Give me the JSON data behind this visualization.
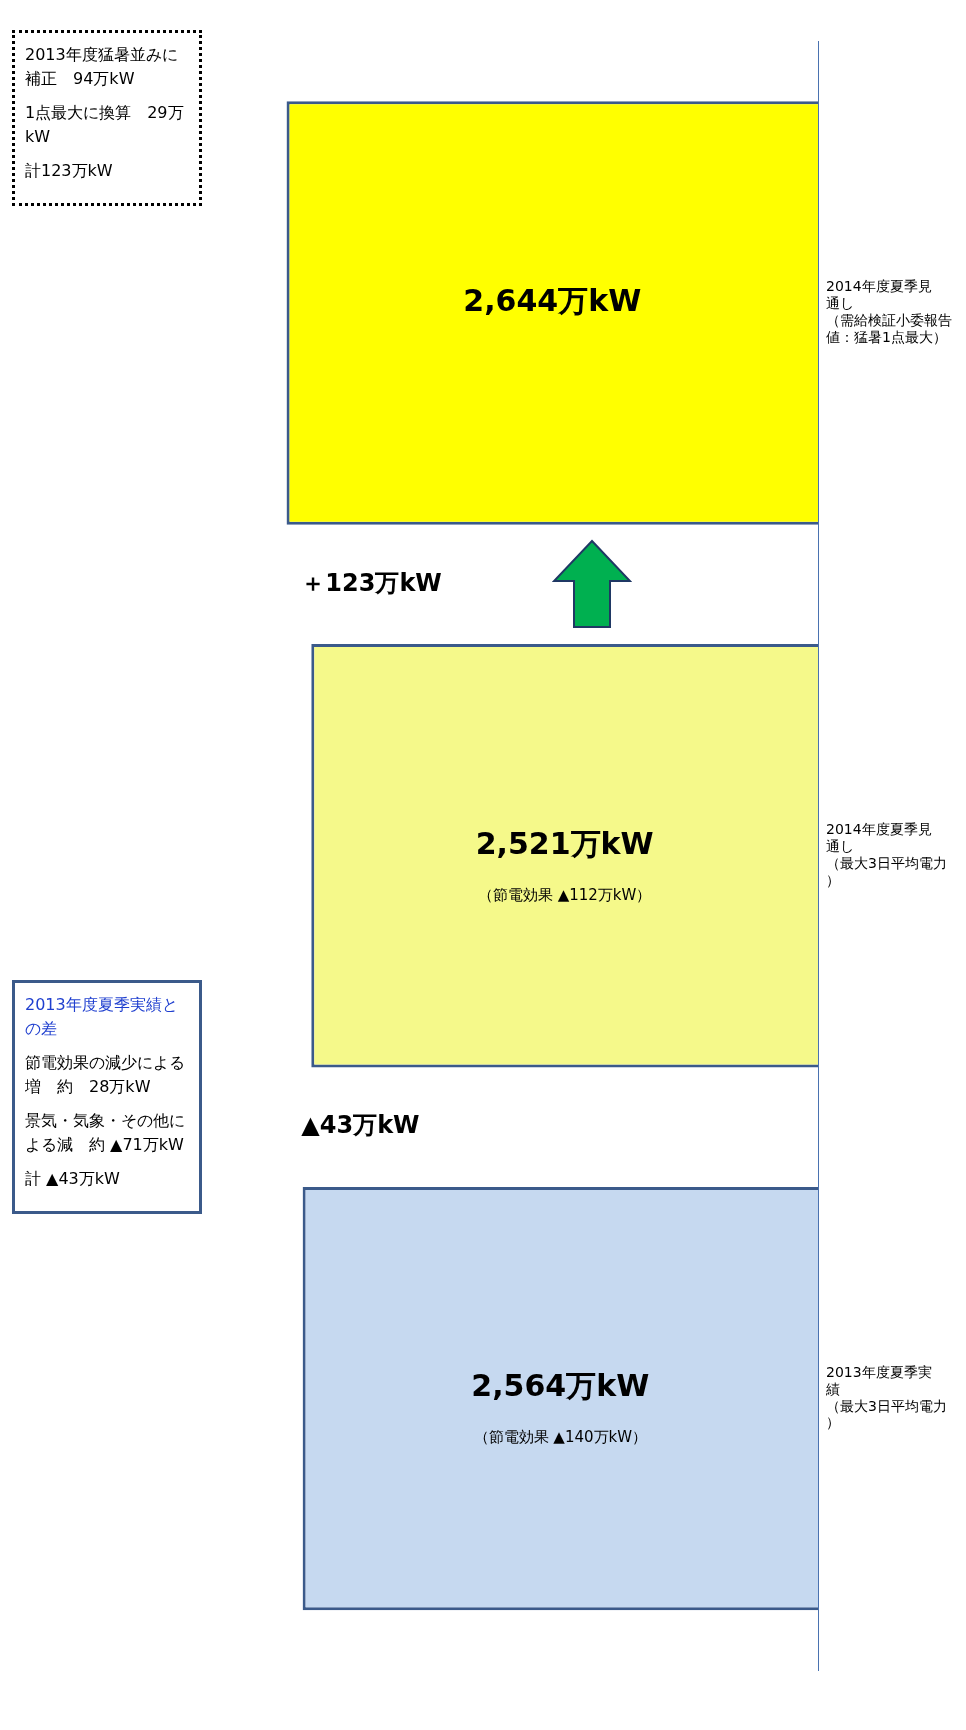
{
  "chart_data": {
    "type": "bar",
    "orientation": "horizontal",
    "categories": [
      "2014年度夏季見通し（需給検証小委報告値：猛暑1点最大）",
      "2014年度夏季見通し（最大3日平均電力）",
      "2013年度夏季実績（最大3日平均電力）"
    ],
    "values": [
      2644,
      2521,
      2564
    ],
    "colors": [
      "#ffff00",
      "#f5f98a",
      "#c6d9f0"
    ],
    "value_labels": [
      "2,644万kW",
      "2,521万kW",
      "2,564万kW"
    ],
    "annotations": [
      "2013年度猛暑並みに補正　94万kW",
      "1点最大に換算　29万kW",
      "計123万kW",
      "＋123万kW",
      "▲43万kW",
      "2013年度夏季実績との差",
      "節電効果の減少による増　約　28万kW",
      "景気・気象・その他による減　約 ▲71万kW",
      "計 ▲43万kW",
      "（節電効果 ▲112万kW）",
      "（節電効果 ▲140万kW）"
    ],
    "grid": false,
    "legend": false
  }
}
